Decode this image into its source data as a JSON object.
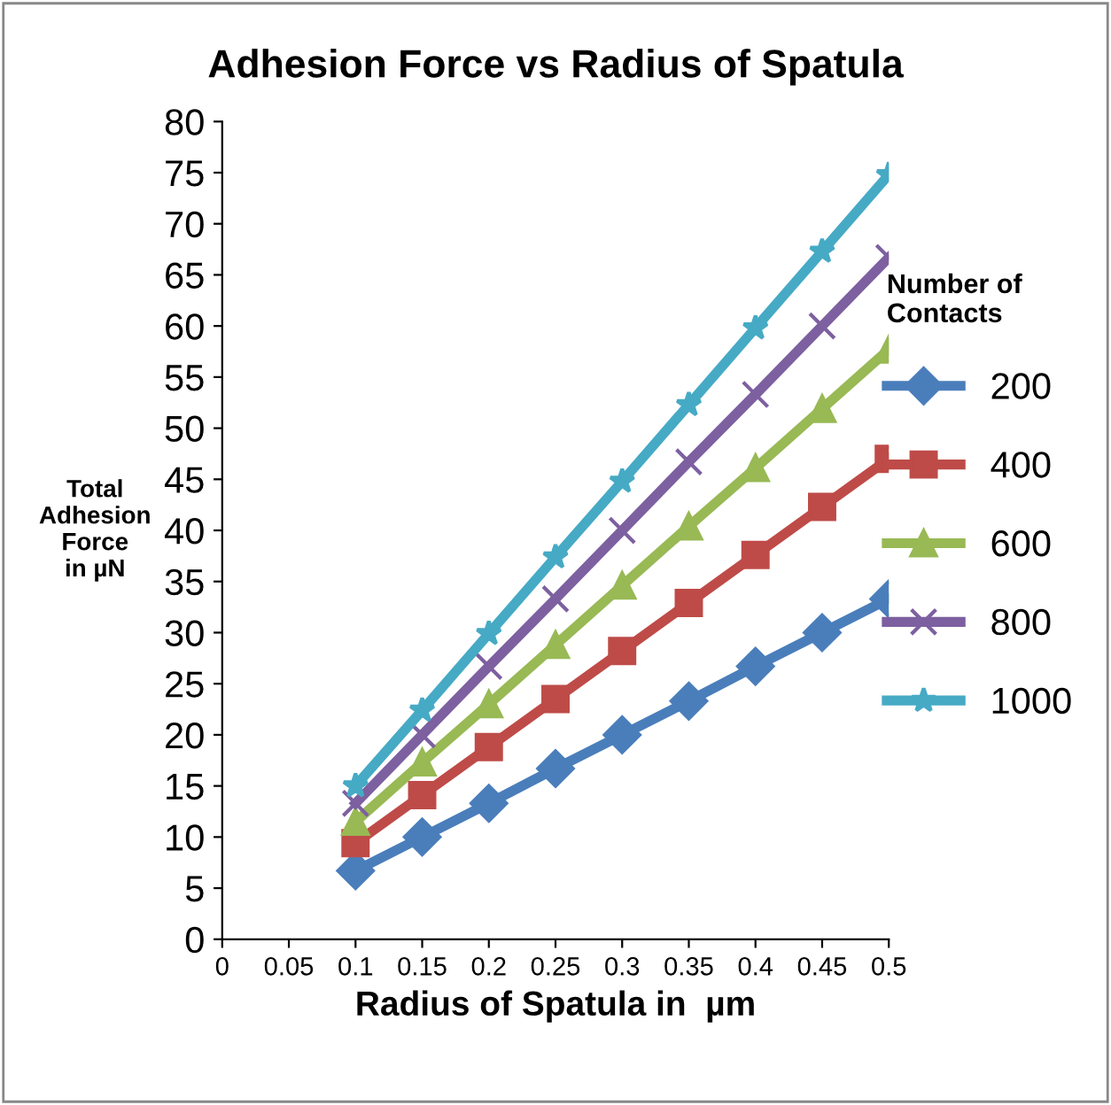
{
  "chart_data": {
    "type": "line",
    "title": "Adhesion Force vs Radius of Spatula",
    "xlabel": "Radius of Spatula in  µm",
    "ylabel": "Total\nAdhesion\nForce\nin µN",
    "legend_title": "Number of\nContacts",
    "legend": "right",
    "grid": false,
    "x": [
      0.1,
      0.15,
      0.2,
      0.25,
      0.3,
      0.35,
      0.4,
      0.45,
      0.5
    ],
    "xlim": [
      0,
      0.5
    ],
    "xticks": [
      0,
      0.05,
      0.1,
      0.15,
      0.2,
      0.25,
      0.3,
      0.35,
      0.4,
      0.45,
      0.5
    ],
    "ylim": [
      0,
      80
    ],
    "yticks": [
      0,
      5,
      10,
      15,
      20,
      25,
      30,
      35,
      40,
      45,
      50,
      55,
      60,
      65,
      70,
      75,
      80
    ],
    "series": [
      {
        "name": "200",
        "color": "#4a7ebb",
        "marker": "diamond",
        "values": [
          6.7,
          10,
          13.3,
          16.7,
          20,
          23.3,
          26.7,
          30,
          33.3
        ]
      },
      {
        "name": "400",
        "color": "#be4b48",
        "marker": "square",
        "values": [
          9.4,
          14.1,
          18.8,
          23.5,
          28.2,
          32.9,
          37.6,
          42.3,
          47
        ]
      },
      {
        "name": "600",
        "color": "#98b954",
        "marker": "triangle",
        "values": [
          11.5,
          17.3,
          23,
          28.8,
          34.6,
          40.4,
          46.1,
          51.9,
          57.7
        ]
      },
      {
        "name": "800",
        "color": "#7d60a0",
        "marker": "cross",
        "values": [
          13.3,
          20,
          26.7,
          33.3,
          40,
          46.7,
          53.3,
          60,
          66.7
        ]
      },
      {
        "name": "1000",
        "color": "#46aac5",
        "marker": "star",
        "values": [
          15,
          22.4,
          29.9,
          37.4,
          44.8,
          52.3,
          59.8,
          67.3,
          74.8
        ]
      }
    ]
  }
}
